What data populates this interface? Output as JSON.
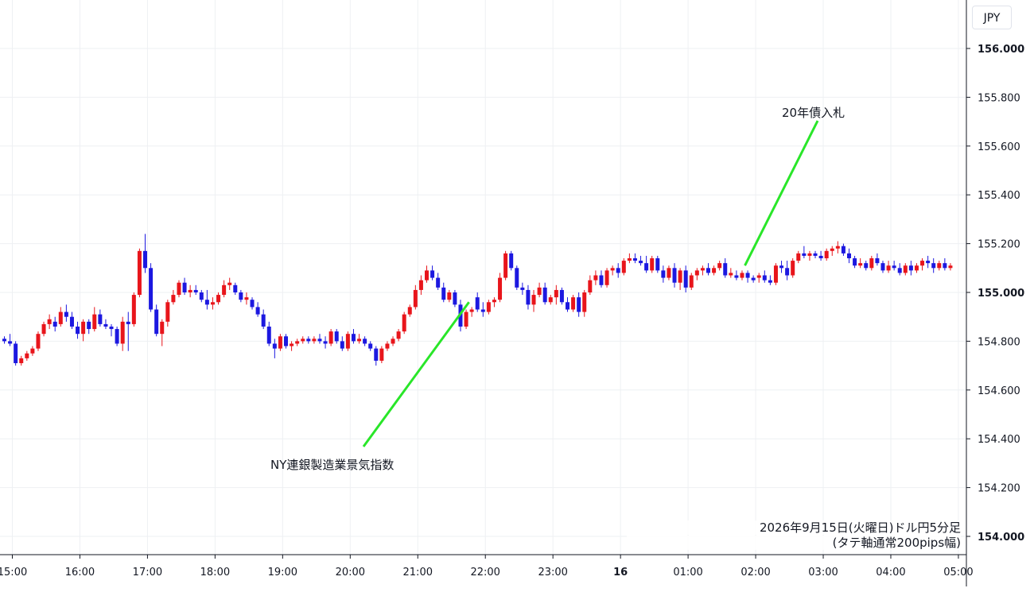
{
  "chart": {
    "currency": "JPY",
    "caption_line1": "2026年9月15日(火曜日)ドル円5分足",
    "caption_line2": "(タテ軸通常200pips幅)"
  },
  "colors": {
    "up": "#e8151b",
    "down": "#1c18e0",
    "annotation_line": "#29e629",
    "grid": "#eef0f3",
    "axis": "#131722"
  },
  "chart_data": {
    "type": "candlestick",
    "instrument": "USD/JPY",
    "timeframe": "5m",
    "y_ticks": [
      "156.000",
      "155.800",
      "155.600",
      "155.400",
      "155.200",
      "155.000",
      "154.800",
      "154.600",
      "154.400",
      "154.200",
      "154.000"
    ],
    "ylim": [
      153.9,
      156.2
    ],
    "x_ticks": [
      {
        "label": "15:00",
        "bar": 0
      },
      {
        "label": "16:00",
        "bar": 12
      },
      {
        "label": "17:00",
        "bar": 24
      },
      {
        "label": "18:00",
        "bar": 36
      },
      {
        "label": "19:00",
        "bar": 48
      },
      {
        "label": "20:00",
        "bar": 60
      },
      {
        "label": "21:00",
        "bar": 72
      },
      {
        "label": "22:00",
        "bar": 84
      },
      {
        "label": "23:00",
        "bar": 96
      },
      {
        "label": "16",
        "bar": 108,
        "bold": true
      },
      {
        "label": "01:00",
        "bar": 120
      },
      {
        "label": "02:00",
        "bar": 132
      },
      {
        "label": "03:00",
        "bar": 144
      },
      {
        "label": "04:00",
        "bar": 156
      },
      {
        "label": "05:00",
        "bar": 168
      }
    ],
    "candles": [
      [
        154.81,
        154.82,
        154.79,
        154.8
      ],
      [
        154.8,
        154.83,
        154.78,
        154.79
      ],
      [
        154.79,
        154.8,
        154.7,
        154.71
      ],
      [
        154.71,
        154.74,
        154.7,
        154.73
      ],
      [
        154.73,
        154.76,
        154.72,
        154.75
      ],
      [
        154.75,
        154.78,
        154.74,
        154.77
      ],
      [
        154.77,
        154.84,
        154.76,
        154.83
      ],
      [
        154.83,
        154.88,
        154.82,
        154.87
      ],
      [
        154.87,
        154.91,
        154.85,
        154.89
      ],
      [
        154.88,
        154.9,
        154.84,
        154.86
      ],
      [
        154.87,
        154.94,
        154.86,
        154.92
      ],
      [
        154.92,
        154.95,
        154.88,
        154.9
      ],
      [
        154.9,
        154.92,
        154.85,
        154.86
      ],
      [
        154.86,
        154.88,
        154.81,
        154.83
      ],
      [
        154.83,
        154.89,
        154.8,
        154.88
      ],
      [
        154.88,
        154.89,
        154.83,
        154.85
      ],
      [
        154.85,
        154.94,
        154.84,
        154.91
      ],
      [
        154.91,
        154.93,
        154.86,
        154.87
      ],
      [
        154.87,
        154.89,
        154.85,
        154.86
      ],
      [
        154.86,
        154.87,
        154.82,
        154.85
      ],
      [
        154.85,
        154.86,
        154.78,
        154.79
      ],
      [
        154.79,
        154.9,
        154.76,
        154.88
      ],
      [
        154.88,
        154.92,
        154.76,
        154.87
      ],
      [
        154.87,
        155.0,
        154.86,
        154.99
      ],
      [
        154.99,
        155.18,
        154.98,
        155.17
      ],
      [
        155.17,
        155.24,
        155.08,
        155.1
      ],
      [
        155.1,
        155.12,
        154.92,
        154.93
      ],
      [
        154.93,
        154.95,
        154.82,
        154.83
      ],
      [
        154.83,
        154.89,
        154.78,
        154.88
      ],
      [
        154.88,
        154.97,
        154.86,
        154.96
      ],
      [
        154.96,
        155.01,
        154.95,
        154.99
      ],
      [
        154.99,
        155.05,
        154.98,
        155.04
      ],
      [
        155.04,
        155.06,
        154.99,
        155.0
      ],
      [
        155.0,
        155.03,
        154.98,
        155.01
      ],
      [
        155.01,
        155.03,
        154.99,
        155.0
      ],
      [
        155.0,
        155.01,
        154.96,
        154.97
      ],
      [
        154.97,
        155.01,
        154.93,
        154.95
      ],
      [
        154.95,
        154.98,
        154.93,
        154.96
      ],
      [
        154.96,
        155.0,
        154.95,
        154.99
      ],
      [
        154.99,
        155.05,
        154.98,
        155.03
      ],
      [
        155.03,
        155.06,
        155.01,
        155.04
      ],
      [
        155.03,
        155.04,
        154.99,
        155.0
      ],
      [
        155.0,
        155.01,
        154.96,
        154.97
      ],
      [
        154.97,
        155.0,
        154.95,
        154.98
      ],
      [
        154.97,
        154.98,
        154.93,
        154.94
      ],
      [
        154.94,
        154.96,
        154.9,
        154.91
      ],
      [
        154.91,
        154.93,
        154.85,
        154.86
      ],
      [
        154.86,
        154.88,
        154.78,
        154.79
      ],
      [
        154.79,
        154.81,
        154.73,
        154.77
      ],
      [
        154.77,
        154.83,
        154.76,
        154.82
      ],
      [
        154.82,
        154.83,
        154.77,
        154.78
      ],
      [
        154.78,
        154.8,
        154.76,
        154.79
      ],
      [
        154.79,
        154.81,
        154.78,
        154.8
      ],
      [
        154.8,
        154.82,
        154.79,
        154.81
      ],
      [
        154.81,
        154.82,
        154.79,
        154.8
      ],
      [
        154.8,
        154.82,
        154.79,
        154.81
      ],
      [
        154.81,
        154.83,
        154.79,
        154.8
      ],
      [
        154.8,
        154.82,
        154.77,
        154.79
      ],
      [
        154.79,
        154.85,
        154.78,
        154.84
      ],
      [
        154.84,
        154.85,
        154.79,
        154.8
      ],
      [
        154.8,
        154.82,
        154.76,
        154.77
      ],
      [
        154.77,
        154.84,
        154.76,
        154.83
      ],
      [
        154.83,
        154.85,
        154.79,
        154.8
      ],
      [
        154.8,
        154.83,
        154.79,
        154.81
      ],
      [
        154.81,
        154.82,
        154.78,
        154.79
      ],
      [
        154.79,
        154.8,
        154.76,
        154.77
      ],
      [
        154.77,
        154.78,
        154.7,
        154.72
      ],
      [
        154.72,
        154.78,
        154.71,
        154.77
      ],
      [
        154.77,
        154.8,
        154.76,
        154.79
      ],
      [
        154.79,
        154.82,
        154.78,
        154.81
      ],
      [
        154.81,
        154.85,
        154.8,
        154.84
      ],
      [
        154.84,
        154.92,
        154.83,
        154.91
      ],
      [
        154.91,
        154.95,
        154.9,
        154.94
      ],
      [
        154.94,
        155.03,
        154.93,
        155.01
      ],
      [
        155.01,
        155.07,
        154.99,
        155.05
      ],
      [
        155.05,
        155.11,
        155.04,
        155.09
      ],
      [
        155.09,
        155.11,
        155.05,
        155.06
      ],
      [
        155.06,
        155.08,
        155.01,
        155.02
      ],
      [
        155.02,
        155.04,
        154.96,
        154.97
      ],
      [
        154.97,
        155.01,
        154.96,
        155.0
      ],
      [
        155.0,
        155.01,
        154.94,
        154.95
      ],
      [
        154.95,
        154.97,
        154.84,
        154.86
      ],
      [
        154.86,
        154.93,
        154.85,
        154.92
      ],
      [
        154.92,
        154.94,
        154.9,
        154.93
      ],
      [
        154.98,
        155.0,
        154.92,
        154.93
      ],
      [
        154.93,
        154.96,
        154.9,
        154.92
      ],
      [
        154.92,
        154.97,
        154.91,
        154.96
      ],
      [
        154.96,
        154.98,
        154.94,
        154.97
      ],
      [
        154.97,
        155.08,
        154.96,
        155.06
      ],
      [
        155.06,
        155.17,
        155.05,
        155.16
      ],
      [
        155.16,
        155.17,
        155.09,
        155.1
      ],
      [
        155.1,
        155.11,
        155.01,
        155.02
      ],
      [
        155.02,
        155.04,
        154.99,
        155.01
      ],
      [
        155.01,
        155.03,
        154.93,
        154.95
      ],
      [
        154.95,
        155.01,
        154.92,
        154.99
      ],
      [
        154.99,
        155.04,
        154.98,
        155.02
      ],
      [
        155.02,
        155.04,
        154.95,
        154.96
      ],
      [
        154.96,
        154.99,
        154.95,
        154.98
      ],
      [
        154.98,
        155.03,
        154.95,
        155.01
      ],
      [
        155.01,
        155.02,
        154.95,
        154.96
      ],
      [
        154.96,
        154.98,
        154.92,
        154.93
      ],
      [
        154.93,
        154.99,
        154.92,
        154.98
      ],
      [
        154.98,
        155.0,
        154.9,
        154.92
      ],
      [
        154.92,
        155.01,
        154.9,
        155.0
      ],
      [
        155.0,
        155.07,
        154.99,
        155.05
      ],
      [
        155.05,
        155.09,
        155.03,
        155.07
      ],
      [
        155.07,
        155.09,
        155.02,
        155.03
      ],
      [
        155.03,
        155.1,
        155.02,
        155.09
      ],
      [
        155.09,
        155.11,
        155.07,
        155.1
      ],
      [
        155.1,
        155.12,
        155.06,
        155.08
      ],
      [
        155.08,
        155.14,
        155.07,
        155.13
      ],
      [
        155.13,
        155.16,
        155.12,
        155.14
      ],
      [
        155.14,
        155.16,
        155.12,
        155.13
      ],
      [
        155.13,
        155.15,
        155.11,
        155.12
      ],
      [
        155.12,
        155.15,
        155.08,
        155.09
      ],
      [
        155.09,
        155.15,
        155.08,
        155.14
      ],
      [
        155.14,
        155.15,
        155.08,
        155.09
      ],
      [
        155.09,
        155.11,
        155.04,
        155.06
      ],
      [
        155.06,
        155.11,
        155.05,
        155.1
      ],
      [
        155.1,
        155.12,
        155.02,
        155.04
      ],
      [
        155.04,
        155.1,
        155.01,
        155.09
      ],
      [
        155.09,
        155.11,
        155.0,
        155.02
      ],
      [
        155.02,
        155.08,
        155.01,
        155.07
      ],
      [
        155.07,
        155.1,
        155.05,
        155.09
      ],
      [
        155.09,
        155.11,
        155.07,
        155.1
      ],
      [
        155.1,
        155.12,
        155.07,
        155.08
      ],
      [
        155.08,
        155.11,
        155.07,
        155.1
      ],
      [
        155.1,
        155.13,
        155.09,
        155.12
      ],
      [
        155.12,
        155.14,
        155.06,
        155.07
      ],
      [
        155.07,
        155.1,
        155.06,
        155.08
      ],
      [
        155.07,
        155.09,
        155.05,
        155.06
      ],
      [
        155.06,
        155.09,
        155.05,
        155.08
      ],
      [
        155.08,
        155.09,
        155.04,
        155.06
      ],
      [
        155.06,
        155.07,
        155.04,
        155.05
      ],
      [
        155.06,
        155.08,
        155.04,
        155.07
      ],
      [
        155.07,
        155.09,
        155.04,
        155.05
      ],
      [
        155.05,
        155.07,
        155.03,
        155.04
      ],
      [
        155.04,
        155.12,
        155.03,
        155.11
      ],
      [
        155.11,
        155.13,
        155.08,
        155.1
      ],
      [
        155.1,
        155.13,
        155.05,
        155.07
      ],
      [
        155.07,
        155.14,
        155.06,
        155.13
      ],
      [
        155.13,
        155.17,
        155.12,
        155.16
      ],
      [
        155.16,
        155.19,
        155.14,
        155.15
      ],
      [
        155.15,
        155.17,
        155.13,
        155.16
      ],
      [
        155.16,
        155.17,
        155.14,
        155.15
      ],
      [
        155.15,
        155.17,
        155.13,
        155.14
      ],
      [
        155.14,
        155.18,
        155.13,
        155.17
      ],
      [
        155.17,
        155.19,
        155.15,
        155.18
      ],
      [
        155.18,
        155.21,
        155.16,
        155.19
      ],
      [
        155.19,
        155.2,
        155.15,
        155.16
      ],
      [
        155.16,
        155.18,
        155.12,
        155.14
      ],
      [
        155.14,
        155.15,
        155.1,
        155.11
      ],
      [
        155.11,
        155.14,
        155.1,
        155.12
      ],
      [
        155.12,
        155.13,
        155.09,
        155.1
      ],
      [
        155.1,
        155.15,
        155.09,
        155.14
      ],
      [
        155.14,
        155.16,
        155.11,
        155.12
      ],
      [
        155.12,
        155.13,
        155.08,
        155.09
      ],
      [
        155.09,
        155.13,
        155.08,
        155.11
      ],
      [
        155.11,
        155.13,
        155.09,
        155.1
      ],
      [
        155.1,
        155.12,
        155.07,
        155.08
      ],
      [
        155.08,
        155.12,
        155.07,
        155.11
      ],
      [
        155.11,
        155.13,
        155.07,
        155.09
      ],
      [
        155.09,
        155.12,
        155.08,
        155.11
      ],
      [
        155.11,
        155.14,
        155.09,
        155.13
      ],
      [
        155.13,
        155.15,
        155.1,
        155.12
      ],
      [
        155.12,
        155.14,
        155.08,
        155.1
      ],
      [
        155.1,
        155.13,
        155.09,
        155.12
      ],
      [
        155.12,
        155.14,
        155.09,
        155.1
      ],
      [
        155.1,
        155.12,
        155.09,
        155.11
      ]
    ],
    "annotations": [
      {
        "text": "NY連銀製造業景気指数",
        "bar": 82.5,
        "price": 154.96
      },
      {
        "text": "20年債入札",
        "bar": 131.5,
        "price": 155.11
      }
    ]
  }
}
